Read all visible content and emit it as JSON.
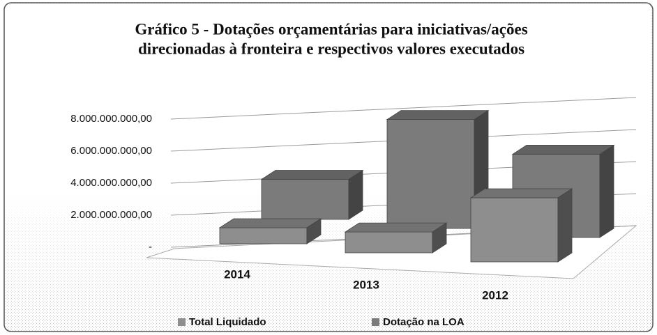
{
  "chart_data": {
    "type": "bar3d",
    "title": [
      "Gráfico 5 - Dotações orçamentárias para iniciativas/ações",
      "direcionadas à fronteira e respectivos valores executados"
    ],
    "categories": [
      "2014",
      "2013",
      "2012"
    ],
    "series": [
      {
        "name": "Total Liquidado",
        "color": "#8e8e8e",
        "values": [
          1000000000,
          1300000000,
          4000000000
        ]
      },
      {
        "name": "Dotação na LOA",
        "color": "#7b7b7b",
        "values": [
          2500000000,
          6800000000,
          5200000000
        ]
      }
    ],
    "ylim": [
      0,
      8000000000
    ],
    "yticks": [
      {
        "value": 0,
        "label": "-"
      },
      {
        "value": 2000000000,
        "label": "2.000.000.000,00"
      },
      {
        "value": 4000000000,
        "label": "4.000.000.000,00"
      },
      {
        "value": 6000000000,
        "label": "6.000.000.000,00"
      },
      {
        "value": 8000000000,
        "label": "8.000.000.000,00"
      }
    ],
    "grid": true
  }
}
